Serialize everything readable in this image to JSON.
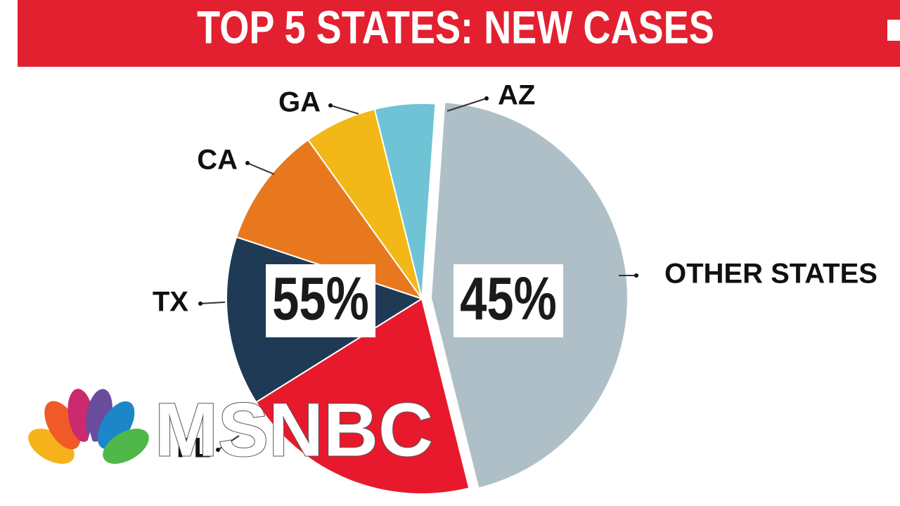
{
  "chart_data": {
    "type": "pie",
    "title": "TOP 5 STATES: NEW CASES",
    "categories": [
      "OTHER STATES",
      "FL",
      "TX",
      "CA",
      "GA",
      "AZ"
    ],
    "values": [
      45,
      20,
      14,
      10,
      6,
      5
    ],
    "value_labels": [
      "45%",
      null,
      null,
      null,
      null,
      null
    ],
    "annotations": [
      "55%"
    ],
    "colors": [
      "#aebfc7",
      "#e8192c",
      "#1f3a55",
      "#e8781e",
      "#f2b817",
      "#6fc3d4"
    ],
    "watermark": "MSNBC"
  }
}
